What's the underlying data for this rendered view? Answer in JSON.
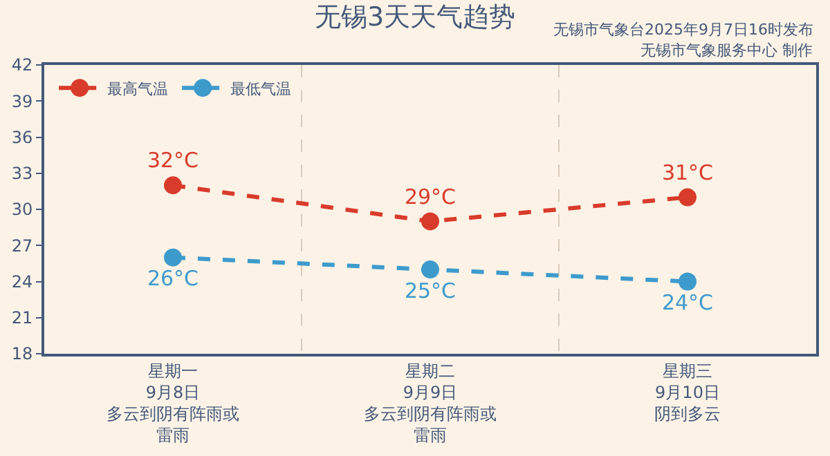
{
  "chart_data": {
    "type": "line",
    "title": "无锡3天天气趋势",
    "annotations": [
      "无锡市气象台2025年9月7日16时发布",
      "无锡市气象服务中心 制作"
    ],
    "categories": [
      "星期一\n9月8日多云到阴有阵雨或雷雨",
      "星期二\n9月9日多云到阴有阵雨或雷雨",
      "星期三\n9月10日阴到多云"
    ],
    "series": [
      {
        "name": "最高气温",
        "color": "#d93b2b",
        "values": [
          32,
          29,
          31
        ],
        "value_labels": [
          "32°C",
          "29°C",
          "31°C"
        ]
      },
      {
        "name": "最低气温",
        "color": "#3d9bcc",
        "values": [
          26,
          25,
          24
        ],
        "value_labels": [
          "26°C",
          "25°C",
          "24°C"
        ]
      }
    ],
    "ylim": [
      18,
      42
    ],
    "yticks": [
      18,
      21,
      24,
      27,
      30,
      33,
      36,
      39,
      42
    ],
    "grid": "x",
    "legend": "top left",
    "marker": "circle",
    "line_style": "dashed"
  }
}
